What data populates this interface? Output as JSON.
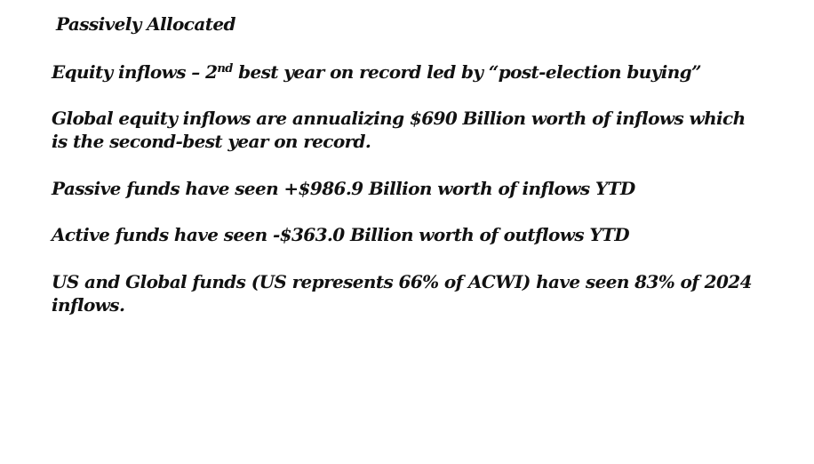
{
  "document": {
    "title": "Passively Allocated",
    "heading_line": {
      "before": "Equity inflows – 2",
      "superscript": "nd",
      "after": " best year on record led by “post-election buying”"
    },
    "paragraphs": [
      "Global equity inflows are annualizing $690 Billion worth of inflows which is the second-best year on record.",
      "Passive funds have seen +$986.9 Billion worth of inflows YTD",
      "Active funds have seen -$363.0 Billion worth of outflows YTD",
      "US and Global funds (US represents 66% of ACWI) have seen 83% of 2024 inflows."
    ]
  }
}
